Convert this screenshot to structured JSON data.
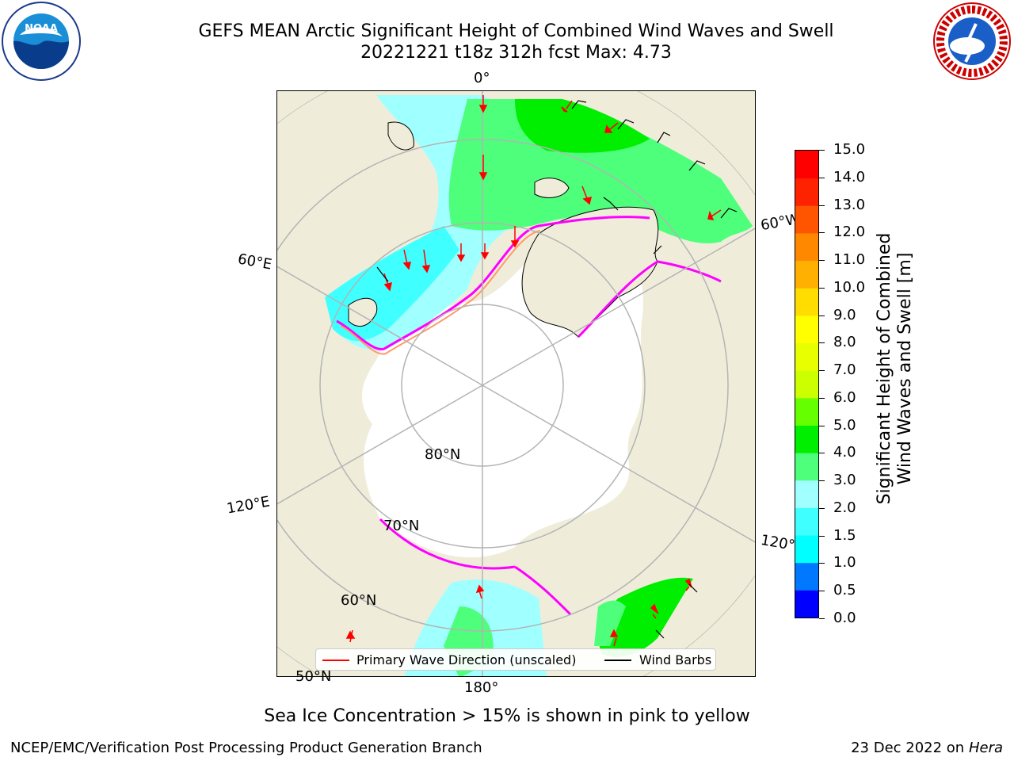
{
  "title": {
    "line1": "GEFS MEAN Arctic Significant Height of Combined Wind Waves and Swell",
    "line2": "20221221 t18z 312h fcst   Max: 4.73"
  },
  "map": {
    "projection": "north-polar-stereographic",
    "meridian_labels": [
      "0°",
      "60°W",
      "120°W",
      "180°",
      "120°E",
      "60°E"
    ],
    "parallel_labels": [
      "80°N",
      "70°N",
      "60°N",
      "50°N"
    ],
    "colors": {
      "land": "#efedda",
      "open_water": "#ffffff",
      "graticule": "#b4b4b4",
      "coast": "#000000",
      "wave_direction_arrow": "#ff0000",
      "wind_barb": "#000000",
      "ice_edge": [
        "#ff00ff",
        "#ff9966",
        "#ffd24d"
      ]
    }
  },
  "colorbar": {
    "label": "Significant Height of Combined Wind Waves and Swell [m]",
    "label_line1": "Significant Height of Combined",
    "label_line2": "Wind Waves and Swell [m]",
    "ticks": [
      "0.0",
      "0.5",
      "1.0",
      "1.5",
      "2.0",
      "3.0",
      "4.0",
      "5.0",
      "6.0",
      "7.0",
      "8.0",
      "9.0",
      "10.0",
      "11.0",
      "12.0",
      "13.0",
      "14.0",
      "15.0"
    ],
    "colors": [
      "#0000ff",
      "#0078ff",
      "#00ffff",
      "#40ffff",
      "#a0ffff",
      "#4dff7a",
      "#00ee00",
      "#66ff00",
      "#ccff00",
      "#e8ff00",
      "#ffff00",
      "#ffdd00",
      "#ffb000",
      "#ff8800",
      "#ff5500",
      "#ff2200",
      "#ff0000"
    ]
  },
  "legend": {
    "primary_wave_direction": "Primary Wave Direction (unscaled)",
    "wind_barbs": "Wind Barbs"
  },
  "footnote": "Sea Ice Concentration > 15% is shown in pink to yellow",
  "footer": {
    "left": "NCEP/EMC/Verification Post Processing Product Generation Branch",
    "right_date": "23 Dec 2022 on",
    "right_machine": "Hera"
  },
  "logos": {
    "noaa": "NOAA",
    "nws": "NATIONAL WEATHER SERVICE"
  }
}
